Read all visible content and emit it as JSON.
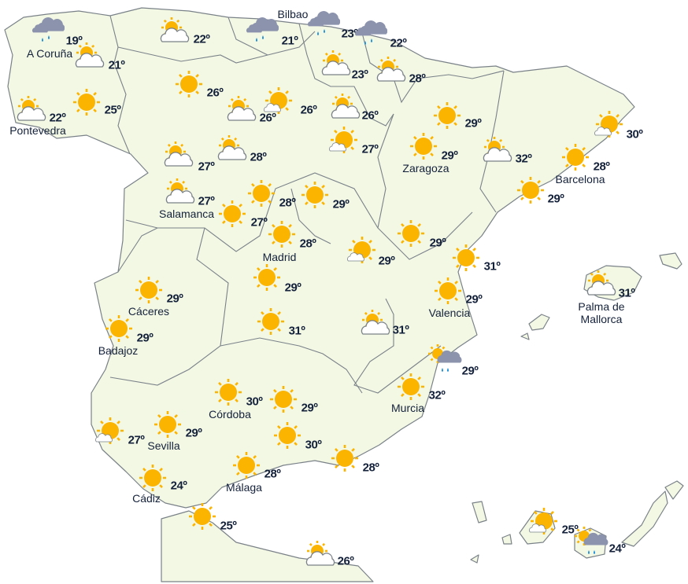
{
  "colors": {
    "land": "#f3f8e5",
    "border": "#7a8288",
    "sun": "#fbb400",
    "cloud": "#ffffff",
    "rain_cloud": "#8c93ad",
    "drop": "#1e90d8",
    "text": "#14213a"
  },
  "stations": [
    {
      "icon": "rain",
      "temp": "19º",
      "label": "A Coruña"
    },
    {
      "icon": "partly-cloudy",
      "temp": "21º"
    },
    {
      "icon": "partly-cloudy",
      "temp": "22º",
      "label": "Pontevedra"
    },
    {
      "icon": "sun",
      "temp": "25º"
    },
    {
      "icon": "partly-cloudy",
      "temp": "22º"
    },
    {
      "icon": "rain",
      "temp": "21º"
    },
    {
      "icon": "rain",
      "temp": "23º",
      "label": "Bilbao"
    },
    {
      "icon": "rain",
      "temp": "22º"
    },
    {
      "icon": "sun",
      "temp": "26º"
    },
    {
      "icon": "mostly-sunny",
      "temp": "26º"
    },
    {
      "icon": "partly-cloudy",
      "temp": "26º"
    },
    {
      "icon": "partly-cloudy",
      "temp": "23º"
    },
    {
      "icon": "partly-cloudy",
      "temp": "28º"
    },
    {
      "icon": "partly-cloudy",
      "temp": "26º"
    },
    {
      "icon": "mostly-sunny",
      "temp": "27º"
    },
    {
      "icon": "sun",
      "temp": "29º"
    },
    {
      "icon": "sun",
      "temp": "29º",
      "label": "Zaragoza"
    },
    {
      "icon": "partly-cloudy",
      "temp": "32º"
    },
    {
      "icon": "mostly-sunny",
      "temp": "30º"
    },
    {
      "icon": "sun",
      "temp": "28º",
      "label": "Barcelona"
    },
    {
      "icon": "sun",
      "temp": "29º"
    },
    {
      "icon": "partly-cloudy",
      "temp": "27º"
    },
    {
      "icon": "partly-cloudy",
      "temp": "28º"
    },
    {
      "icon": "partly-cloudy",
      "temp": "27º",
      "label": "Salamanca"
    },
    {
      "icon": "sun",
      "temp": "28º"
    },
    {
      "icon": "sun",
      "temp": "27º"
    },
    {
      "icon": "sun",
      "temp": "29º"
    },
    {
      "icon": "sun",
      "temp": "28º",
      "label": "Madrid"
    },
    {
      "icon": "mostly-sunny",
      "temp": "29º"
    },
    {
      "icon": "sun",
      "temp": "29º"
    },
    {
      "icon": "sun",
      "temp": "31º"
    },
    {
      "icon": "sun",
      "temp": "29º",
      "label": "Cáceres"
    },
    {
      "icon": "sun",
      "temp": "29º"
    },
    {
      "icon": "sun",
      "temp": "29º",
      "label": "Valencia"
    },
    {
      "icon": "sun",
      "temp": "29º",
      "label": "Badajoz"
    },
    {
      "icon": "sun",
      "temp": "31º"
    },
    {
      "icon": "partly-cloudy",
      "temp": "31º"
    },
    {
      "icon": "sun-rain",
      "temp": "29º"
    },
    {
      "icon": "sun",
      "temp": "30º",
      "label": "Córdoba"
    },
    {
      "icon": "sun",
      "temp": "29º"
    },
    {
      "icon": "sun",
      "temp": "32º",
      "label": "Murcia"
    },
    {
      "icon": "mostly-sunny",
      "temp": "27º"
    },
    {
      "icon": "sun",
      "temp": "29º",
      "label": "Sevilla"
    },
    {
      "icon": "sun",
      "temp": "30º"
    },
    {
      "icon": "sun",
      "temp": "28º"
    },
    {
      "icon": "sun",
      "temp": "28º",
      "label": "Málaga"
    },
    {
      "icon": "sun",
      "temp": "24º",
      "label": "Cádiz"
    },
    {
      "icon": "sun",
      "temp": "25º"
    },
    {
      "icon": "partly-cloudy",
      "temp": "26º"
    },
    {
      "icon": "partly-cloudy",
      "temp": "31º",
      "label": "Palma de Mallorca"
    },
    {
      "icon": "mostly-sunny",
      "temp": "25º"
    },
    {
      "icon": "sun-rain",
      "temp": "24º"
    }
  ]
}
